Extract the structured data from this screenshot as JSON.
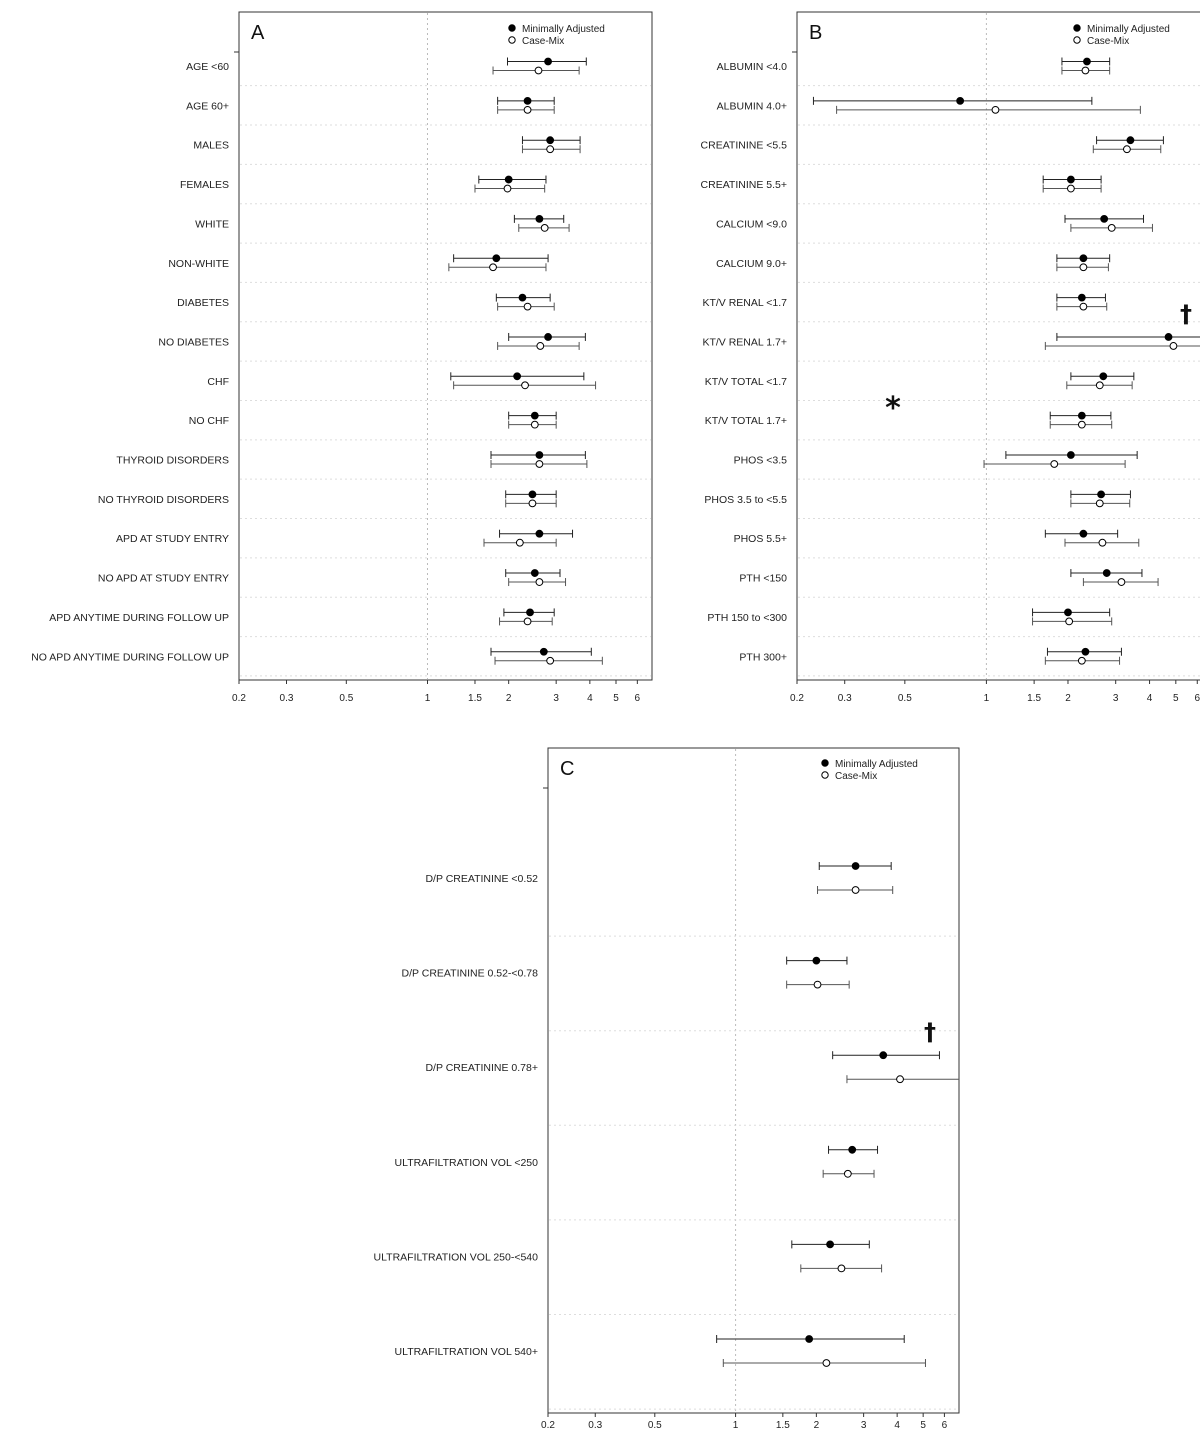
{
  "legend": {
    "filled": "Minimally Adjusted",
    "open": "Case-Mix"
  },
  "x_ticks": [
    "0.2",
    "0.3",
    "0.5",
    "1",
    "1.5",
    "2",
    "3",
    "4",
    "5",
    "6"
  ],
  "x_tick_values": [
    0.2,
    0.3,
    0.5,
    1,
    1.5,
    2,
    3,
    4,
    5,
    6
  ],
  "chart_data": [
    {
      "panel": "A",
      "type": "scatter",
      "x_scale": "log",
      "xlim": [
        0.2,
        6.8
      ],
      "rows": [
        {
          "label": "AGE <60",
          "min": [
            2.8,
            1.98,
            3.88
          ],
          "cm": [
            2.58,
            1.75,
            3.65
          ]
        },
        {
          "label": "AGE 60+",
          "min": [
            2.35,
            1.82,
            2.95
          ],
          "cm": [
            2.35,
            1.82,
            2.95
          ]
        },
        {
          "label": "MALES",
          "min": [
            2.85,
            2.25,
            3.68
          ],
          "cm": [
            2.85,
            2.25,
            3.68
          ]
        },
        {
          "label": "FEMALES",
          "min": [
            2.0,
            1.55,
            2.75
          ],
          "cm": [
            1.98,
            1.5,
            2.72
          ]
        },
        {
          "label": "WHITE",
          "min": [
            2.6,
            2.1,
            3.2
          ],
          "cm": [
            2.72,
            2.18,
            3.35
          ]
        },
        {
          "label": "NON-WHITE",
          "min": [
            1.8,
            1.25,
            2.8
          ],
          "cm": [
            1.75,
            1.2,
            2.75
          ]
        },
        {
          "label": "DIABETES",
          "min": [
            2.25,
            1.8,
            2.85
          ],
          "cm": [
            2.35,
            1.82,
            2.95
          ]
        },
        {
          "label": "NO DIABETES",
          "min": [
            2.8,
            2.0,
            3.85
          ],
          "cm": [
            2.62,
            1.82,
            3.65
          ]
        },
        {
          "label": "CHF",
          "min": [
            2.15,
            1.22,
            3.8
          ],
          "cm": [
            2.3,
            1.25,
            4.2
          ]
        },
        {
          "label": "NO CHF",
          "min": [
            2.5,
            2.0,
            3.0
          ],
          "cm": [
            2.5,
            2.0,
            3.0
          ]
        },
        {
          "label": "THYROID DISORDERS",
          "min": [
            2.6,
            1.72,
            3.85
          ],
          "cm": [
            2.6,
            1.72,
            3.9
          ]
        },
        {
          "label": "NO THYROID DISORDERS",
          "min": [
            2.45,
            1.95,
            3.0
          ],
          "cm": [
            2.45,
            1.95,
            3.0
          ]
        },
        {
          "label": "APD AT STUDY ENTRY",
          "min": [
            2.6,
            1.85,
            3.45
          ],
          "cm": [
            2.2,
            1.62,
            3.0
          ]
        },
        {
          "label": "NO APD AT STUDY ENTRY",
          "min": [
            2.5,
            1.95,
            3.1
          ],
          "cm": [
            2.6,
            2.0,
            3.25
          ]
        },
        {
          "label": "APD ANYTIME DURING FOLLOW UP",
          "min": [
            2.4,
            1.92,
            2.95
          ],
          "cm": [
            2.35,
            1.85,
            2.9
          ]
        },
        {
          "label": "NO APD ANYTIME DURING FOLLOW UP",
          "min": [
            2.7,
            1.72,
            4.05
          ],
          "cm": [
            2.85,
            1.78,
            4.45
          ]
        }
      ]
    },
    {
      "panel": "B",
      "type": "scatter",
      "x_scale": "log",
      "xlim": [
        0.2,
        6.8
      ],
      "rows": [
        {
          "label": "ALBUMIN <4.0",
          "min": [
            2.35,
            1.9,
            2.85
          ],
          "cm": [
            2.32,
            1.9,
            2.85
          ]
        },
        {
          "label": "ALBUMIN 4.0+",
          "min": [
            0.8,
            0.23,
            2.45
          ],
          "cm": [
            1.08,
            0.28,
            3.7
          ]
        },
        {
          "label": "CREATININE <5.5",
          "min": [
            3.4,
            2.55,
            4.5
          ],
          "cm": [
            3.3,
            2.48,
            4.4
          ]
        },
        {
          "label": "CREATININE 5.5+",
          "min": [
            2.05,
            1.62,
            2.65
          ],
          "cm": [
            2.05,
            1.62,
            2.65
          ]
        },
        {
          "label": "CALCIUM <9.0",
          "min": [
            2.72,
            1.95,
            3.8
          ],
          "cm": [
            2.9,
            2.05,
            4.1
          ]
        },
        {
          "label": "CALCIUM 9.0+",
          "min": [
            2.28,
            1.82,
            2.85
          ],
          "cm": [
            2.28,
            1.82,
            2.82
          ]
        },
        {
          "label": "KT/V RENAL <1.7",
          "min": [
            2.25,
            1.82,
            2.75
          ],
          "cm": [
            2.28,
            1.82,
            2.78
          ]
        },
        {
          "label": "KT/V RENAL 1.7+",
          "min": [
            4.7,
            1.82,
            6.8
          ],
          "cm": [
            4.9,
            1.65,
            6.8
          ]
        },
        {
          "label": "KT/V TOTAL <1.7",
          "min": [
            2.7,
            2.05,
            3.5
          ],
          "cm": [
            2.62,
            1.98,
            3.45
          ]
        },
        {
          "label": "KT/V TOTAL 1.7+",
          "min": [
            2.25,
            1.72,
            2.88
          ],
          "cm": [
            2.25,
            1.72,
            2.9
          ]
        },
        {
          "label": "PHOS <3.5",
          "min": [
            2.05,
            1.18,
            3.6
          ],
          "cm": [
            1.78,
            0.98,
            3.25
          ]
        },
        {
          "label": "PHOS 3.5 to <5.5",
          "min": [
            2.65,
            2.05,
            3.4
          ],
          "cm": [
            2.62,
            2.05,
            3.38
          ]
        },
        {
          "label": "PHOS 5.5+",
          "min": [
            2.28,
            1.65,
            3.05
          ],
          "cm": [
            2.68,
            1.95,
            3.65
          ]
        },
        {
          "label": "PTH <150",
          "min": [
            2.78,
            2.05,
            3.75
          ],
          "cm": [
            3.15,
            2.28,
            4.3
          ]
        },
        {
          "label": "PTH 150 to <300",
          "min": [
            2.0,
            1.48,
            2.85
          ],
          "cm": [
            2.02,
            1.48,
            2.9
          ]
        },
        {
          "label": "PTH 300+",
          "min": [
            2.32,
            1.68,
            3.15
          ],
          "cm": [
            2.25,
            1.65,
            3.1
          ]
        }
      ]
    },
    {
      "panel": "C",
      "type": "scatter",
      "x_scale": "log",
      "xlim": [
        0.2,
        6.8
      ],
      "rows": [
        {
          "label": "D/P CREATININE <0.52",
          "min": [
            2.8,
            2.05,
            3.8
          ],
          "cm": [
            2.8,
            2.02,
            3.85
          ]
        },
        {
          "label": "D/P CREATININE 0.52-<0.78",
          "min": [
            2.0,
            1.55,
            2.6
          ],
          "cm": [
            2.02,
            1.55,
            2.65
          ]
        },
        {
          "label": "D/P CREATININE 0.78+",
          "min": [
            3.55,
            2.3,
            5.75
          ],
          "cm": [
            4.1,
            2.6,
            6.8
          ]
        },
        {
          "label": "ULTRAFILTRATION VOL <250",
          "min": [
            2.72,
            2.22,
            3.38
          ],
          "cm": [
            2.62,
            2.12,
            3.28
          ]
        },
        {
          "label": "ULTRAFILTRATION VOL 250-<540",
          "min": [
            2.25,
            1.62,
            3.15
          ],
          "cm": [
            2.48,
            1.75,
            3.5
          ]
        },
        {
          "label": "ULTRAFILTRATION VOL 540+",
          "min": [
            1.88,
            0.85,
            4.25
          ],
          "cm": [
            2.18,
            0.9,
            5.1
          ]
        }
      ]
    }
  ],
  "annotations": {
    "asterisk": "*",
    "dagger": "†"
  }
}
